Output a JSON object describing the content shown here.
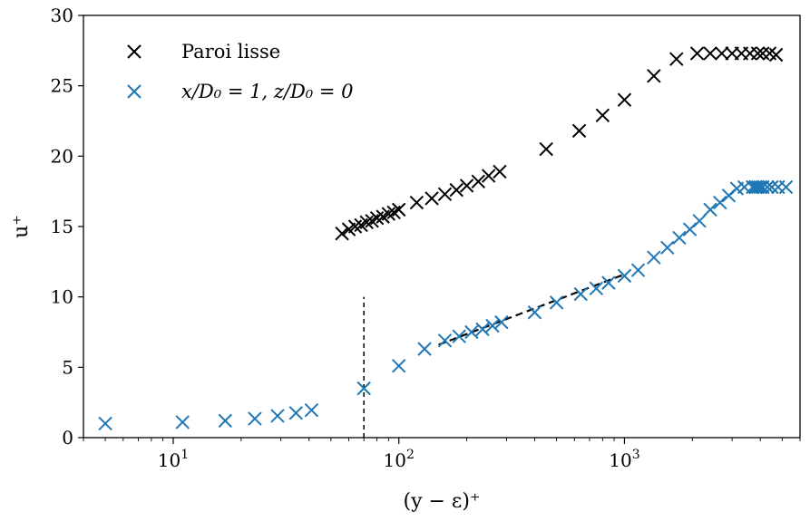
{
  "chart_data": {
    "type": "scatter",
    "xlabel": "(y − ε)⁺",
    "ylabel": "u⁺",
    "xscale": "log",
    "xlim": [
      4,
      6000
    ],
    "ylim": [
      0,
      30
    ],
    "yticks": [
      0,
      5,
      10,
      15,
      20,
      25,
      30
    ],
    "xticks": [
      {
        "value": 10,
        "base": "10",
        "exp": "1"
      },
      {
        "value": 100,
        "base": "10",
        "exp": "2"
      },
      {
        "value": 1000,
        "base": "10",
        "exp": "3"
      }
    ],
    "grid": false,
    "legend_position": "upper-left",
    "series": [
      {
        "name": "Paroi lisse",
        "color": "#000000",
        "marker": "x",
        "x": [
          56,
          60,
          64,
          68,
          72,
          76,
          80,
          85,
          90,
          95,
          100,
          120,
          140,
          160,
          180,
          200,
          225,
          250,
          280,
          450,
          630,
          800,
          1000,
          1350,
          1700,
          2100,
          2400,
          2700,
          3000,
          3300,
          3600,
          3900,
          4100,
          4400,
          4700
        ],
        "y": [
          14.5,
          14.8,
          15.0,
          15.1,
          15.3,
          15.4,
          15.6,
          15.7,
          15.9,
          16.0,
          16.2,
          16.7,
          17.0,
          17.3,
          17.6,
          17.9,
          18.2,
          18.6,
          18.9,
          20.5,
          21.8,
          22.9,
          24.0,
          25.7,
          26.9,
          27.3,
          27.3,
          27.3,
          27.3,
          27.3,
          27.3,
          27.3,
          27.3,
          27.3,
          27.2
        ]
      },
      {
        "name": "x/D₀ = 1, z/D₀ = 0",
        "color": "#1f77b4",
        "marker": "x",
        "x": [
          5,
          11,
          17,
          23,
          29,
          35,
          41,
          70,
          100,
          130,
          160,
          185,
          210,
          235,
          260,
          285,
          400,
          500,
          640,
          750,
          850,
          1000,
          1150,
          1350,
          1550,
          1750,
          1950,
          2150,
          2400,
          2650,
          2900,
          3150,
          3400,
          3700,
          3800,
          3900,
          4000,
          4100,
          4300,
          4500,
          4800,
          5200
        ],
        "y": [
          1.0,
          1.1,
          1.2,
          1.35,
          1.55,
          1.75,
          1.95,
          3.5,
          5.1,
          6.3,
          6.9,
          7.2,
          7.5,
          7.7,
          7.95,
          8.2,
          8.9,
          9.6,
          10.2,
          10.6,
          11.0,
          11.5,
          11.9,
          12.8,
          13.5,
          14.2,
          14.8,
          15.4,
          16.2,
          16.7,
          17.2,
          17.7,
          17.8,
          17.8,
          17.8,
          17.8,
          17.8,
          17.8,
          17.8,
          17.8,
          17.8,
          17.8
        ]
      }
    ],
    "reference_lines": [
      {
        "style": "dashed",
        "color": "#000000",
        "x": [
          70,
          70
        ],
        "y": [
          0,
          10
        ]
      },
      {
        "style": "dashed",
        "color": "#000000",
        "x": [
          150,
          1000
        ],
        "y": [
          6.6,
          11.6
        ]
      }
    ]
  }
}
